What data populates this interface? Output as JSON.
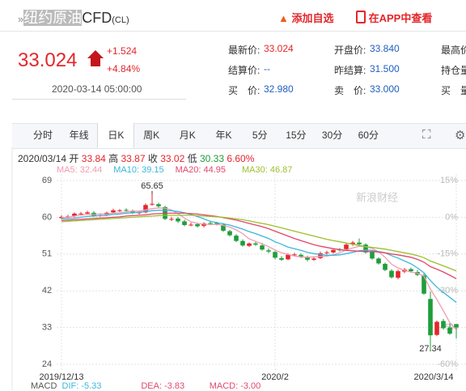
{
  "header": {
    "name_highlight": "纽约原油",
    "name": "CFD",
    "suffix": "(CL)",
    "add_watch": "添加自选",
    "open_app": "在APP中查看"
  },
  "quote": {
    "price": "33.024",
    "change": "+1.524",
    "change_pct": "+4.84%",
    "time": "2020-03-14 05:00:00"
  },
  "fields": [
    [
      {
        "label": "最新价:",
        "value": "33.024"
      },
      {
        "label": "开盘价:",
        "value": "33.840"
      },
      {
        "label": "最高价"
      }
    ],
    [
      {
        "label": "结算价:",
        "value": "--"
      },
      {
        "label": "昨结算:",
        "value": "31.500"
      },
      {
        "label": "持仓量"
      }
    ],
    [
      {
        "label": "买　价:",
        "value": "32.980"
      },
      {
        "label": "卖　价:",
        "value": "33.000"
      },
      {
        "label": "买　量"
      }
    ]
  ],
  "tabs": [
    "分时",
    "年线",
    "日K",
    "周K",
    "月K",
    "年K",
    "5分",
    "15分",
    "30分",
    "60分"
  ],
  "selected_tab": "日K",
  "info": {
    "date": "2020/03/14",
    "open_label": "开",
    "high_label": "高",
    "close_label": "收",
    "low_label": "低",
    "change": "6.60%"
  },
  "watermark": "新浪财经",
  "indicator": {
    "name": "MACD",
    "dif": "DIF: -5.33",
    "dea": "DEA: -3.83",
    "macd": "MACD: -3.00"
  },
  "chart_data": {
    "type": "candlestick",
    "categories": [
      "2019/12/13",
      null,
      null,
      null,
      null,
      null,
      null,
      null,
      null,
      null,
      null,
      null,
      null,
      null,
      null,
      null,
      null,
      null,
      null,
      null,
      null,
      null,
      null,
      null,
      null,
      null,
      null,
      null,
      null,
      null,
      null,
      null,
      null,
      "2020/2",
      null,
      null,
      null,
      null,
      null,
      null,
      null,
      null,
      null,
      null,
      null,
      null,
      null,
      null,
      null,
      null,
      null,
      null,
      null,
      null,
      null,
      null,
      null,
      null,
      null,
      null,
      null,
      "2020/3/14"
    ],
    "open": [
      59.8,
      60.0,
      60.3,
      60.8,
      60.9,
      61.1,
      60.4,
      60.6,
      61.2,
      61.6,
      61.8,
      61.6,
      61.0,
      61.2,
      63.1,
      63.2,
      62.5,
      59.5,
      59.7,
      59.0,
      58.2,
      58.3,
      57.9,
      58.6,
      58.6,
      58.2,
      56.6,
      55.5,
      54.2,
      53.0,
      53.6,
      53.1,
      51.9,
      51.5,
      50.0,
      49.7,
      50.8,
      50.8,
      50.2,
      49.6,
      50.0,
      51.3,
      51.4,
      52.1,
      52.2,
      53.4,
      53.8,
      53.3,
      51.5,
      49.9,
      48.6,
      46.9,
      45.2,
      46.7,
      47.3,
      46.6,
      45.8,
      40.0,
      31.2,
      34.6,
      33.0,
      33.84
    ],
    "high": [
      60.5,
      60.6,
      61.2,
      61.3,
      61.6,
      61.5,
      61.0,
      61.4,
      62.1,
      62.0,
      62.2,
      61.9,
      61.6,
      63.4,
      65.65,
      63.6,
      62.8,
      60.1,
      60.1,
      59.4,
      58.7,
      58.7,
      58.8,
      58.9,
      58.9,
      58.6,
      56.9,
      55.9,
      54.6,
      53.8,
      54.0,
      53.7,
      52.4,
      51.8,
      50.5,
      51.2,
      51.3,
      51.2,
      50.6,
      50.3,
      51.6,
      51.8,
      52.4,
      52.5,
      53.7,
      54.2,
      54.8,
      53.6,
      51.8,
      50.2,
      48.9,
      47.3,
      47.2,
      47.6,
      47.7,
      47.1,
      46.2,
      41.8,
      34.7,
      35.1,
      34.2,
      33.87
    ],
    "low": [
      59.5,
      59.7,
      60.0,
      60.4,
      60.6,
      60.1,
      60.1,
      60.3,
      60.9,
      61.3,
      61.3,
      60.8,
      60.7,
      61.0,
      62.8,
      62.3,
      59.3,
      59.1,
      58.6,
      57.8,
      57.8,
      57.5,
      57.5,
      58.1,
      58.0,
      56.4,
      55.3,
      53.9,
      52.8,
      52.7,
      53.0,
      51.8,
      51.2,
      49.7,
      49.3,
      49.5,
      50.4,
      50.0,
      49.2,
      49.3,
      49.8,
      50.9,
      51.1,
      51.6,
      51.9,
      53.0,
      53.1,
      51.1,
      49.6,
      48.4,
      46.8,
      45.0,
      44.8,
      46.3,
      46.4,
      45.6,
      41.0,
      27.34,
      30.9,
      32.5,
      31.2,
      30.33
    ],
    "close": [
      60.1,
      60.2,
      60.9,
      60.9,
      61.2,
      60.4,
      60.5,
      61.1,
      61.7,
      61.7,
      61.7,
      61.1,
      61.2,
      63.0,
      63.3,
      62.7,
      59.6,
      59.6,
      59.0,
      58.1,
      58.2,
      57.8,
      58.5,
      58.5,
      58.3,
      56.7,
      55.6,
      54.2,
      53.1,
      53.6,
      53.3,
      52.1,
      51.6,
      50.1,
      49.6,
      50.8,
      50.9,
      50.3,
      49.6,
      49.9,
      51.2,
      51.4,
      52.0,
      52.0,
      53.3,
      53.8,
      53.4,
      51.4,
      49.9,
      48.7,
      47.1,
      45.3,
      46.8,
      47.2,
      46.8,
      45.9,
      41.3,
      31.1,
      34.4,
      32.9,
      31.5,
      33.02
    ],
    "up_color": "#e4262a",
    "down_color": "#1f9d3a",
    "series": [
      {
        "name": "MA5",
        "legend": "MA5: 32.44",
        "color": "#f29bb0",
        "values": [
          59.9,
          60.0,
          60.3,
          60.5,
          60.7,
          60.7,
          60.8,
          60.8,
          61.0,
          61.1,
          61.3,
          61.5,
          61.5,
          61.8,
          62.1,
          62.3,
          62.2,
          61.8,
          60.9,
          59.8,
          58.9,
          58.5,
          58.3,
          58.2,
          58.3,
          58.0,
          57.6,
          56.9,
          56.0,
          54.7,
          54.1,
          53.5,
          52.8,
          52.0,
          51.3,
          50.9,
          50.5,
          50.3,
          50.2,
          50.3,
          50.4,
          50.5,
          50.8,
          51.3,
          52.0,
          52.5,
          52.9,
          52.8,
          52.4,
          51.5,
          50.2,
          48.5,
          47.6,
          47.0,
          46.6,
          46.3,
          45.6,
          42.4,
          39.9,
          37.1,
          34.2,
          32.44
        ]
      },
      {
        "name": "MA10",
        "legend": "MA10: 39.15",
        "color": "#3bb6dc",
        "values": [
          59.6,
          59.7,
          59.8,
          60.0,
          60.2,
          60.3,
          60.4,
          60.5,
          60.7,
          60.8,
          61.0,
          61.1,
          61.2,
          61.4,
          61.6,
          61.7,
          61.7,
          61.6,
          61.4,
          61.1,
          60.7,
          60.2,
          59.6,
          59.0,
          58.7,
          58.4,
          58.1,
          57.6,
          57.1,
          56.5,
          56.0,
          55.4,
          54.8,
          54.0,
          53.4,
          52.7,
          52.3,
          51.9,
          51.4,
          51.1,
          50.9,
          50.7,
          50.7,
          50.8,
          51.1,
          51.4,
          51.8,
          52.0,
          51.9,
          51.6,
          51.3,
          50.6,
          50.0,
          49.3,
          48.6,
          47.6,
          46.4,
          44.5,
          42.9,
          41.6,
          40.4,
          39.15
        ]
      },
      {
        "name": "MA20",
        "legend": "MA20: 44.95",
        "color": "#e0476a",
        "values": [
          59.2,
          59.3,
          59.4,
          59.5,
          59.6,
          59.7,
          59.8,
          59.9,
          60.0,
          60.1,
          60.3,
          60.4,
          60.5,
          60.6,
          60.8,
          60.9,
          61.0,
          61.0,
          61.0,
          61.0,
          60.9,
          60.8,
          60.6,
          60.4,
          60.2,
          59.9,
          59.6,
          59.3,
          58.9,
          58.5,
          58.1,
          57.7,
          57.2,
          56.6,
          56.0,
          55.4,
          54.8,
          54.3,
          53.8,
          53.3,
          52.9,
          52.6,
          52.3,
          52.1,
          51.9,
          51.8,
          51.7,
          51.6,
          51.6,
          51.5,
          51.3,
          51.0,
          50.8,
          50.5,
          50.2,
          49.7,
          49.0,
          47.9,
          47.3,
          46.6,
          45.8,
          44.95
        ]
      },
      {
        "name": "MA30",
        "legend": "MA30: 46.87",
        "color": "#9cbf2c",
        "values": [
          58.9,
          59.0,
          59.1,
          59.2,
          59.3,
          59.4,
          59.5,
          59.6,
          59.7,
          59.8,
          59.9,
          60.0,
          60.1,
          60.2,
          60.3,
          60.4,
          60.5,
          60.5,
          60.5,
          60.5,
          60.5,
          60.4,
          60.3,
          60.2,
          60.1,
          60.0,
          59.8,
          59.6,
          59.4,
          59.1,
          58.8,
          58.5,
          58.2,
          57.8,
          57.4,
          57.0,
          56.6,
          56.2,
          55.8,
          55.4,
          55.0,
          54.6,
          54.3,
          54.0,
          53.7,
          53.4,
          53.1,
          52.8,
          52.6,
          52.4,
          52.2,
          51.9,
          51.6,
          51.3,
          51.0,
          50.6,
          50.1,
          49.3,
          48.7,
          48.1,
          47.5,
          46.87
        ]
      }
    ],
    "ylim": [
      24,
      69
    ],
    "yticks": [
      69,
      60,
      51,
      42,
      33,
      24
    ],
    "y2lim": [
      -60,
      15
    ],
    "y2ticks": [
      {
        "value": 15,
        "label": "15%"
      },
      {
        "value": 0,
        "label": "0%"
      },
      {
        "value": -15,
        "label": "-15%"
      },
      {
        "value": -30,
        "label": "-30%"
      },
      {
        "value": -45,
        "label": "-45%"
      },
      {
        "value": -60,
        "label": "-60%"
      }
    ],
    "annotations": [
      65.65,
      27.34
    ],
    "grid": true
  }
}
